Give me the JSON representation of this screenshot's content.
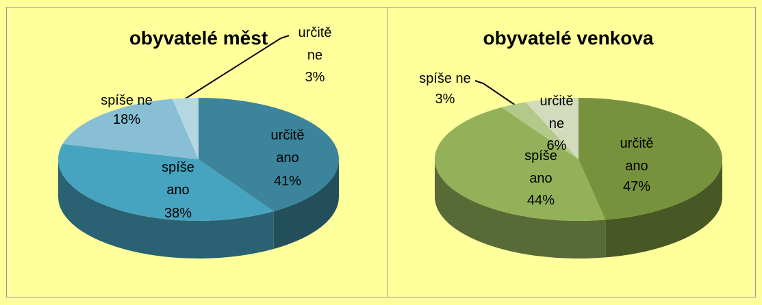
{
  "chart_data": [
    {
      "type": "pie",
      "title": "obyvatelé měst",
      "categories": [
        "určitě ano",
        "spíše ano",
        "spíše ne",
        "určitě ne"
      ],
      "values": [
        41,
        38,
        18,
        3
      ],
      "value_labels": [
        "41%",
        "38%",
        "18%",
        "3%"
      ],
      "colors": [
        "#3b849b",
        "#46a4c0",
        "#88bfd4",
        "#b5d6e3"
      ]
    },
    {
      "type": "pie",
      "title": "obyvatelé venkova",
      "categories": [
        "určitě ano",
        "spíše ano",
        "spíše ne",
        "určitě ne"
      ],
      "values": [
        47,
        44,
        3,
        6
      ],
      "value_labels": [
        "47%",
        "44%",
        "3%",
        "6%"
      ],
      "colors": [
        "#77923c",
        "#92b158",
        "#b3c98b",
        "#d2dcbd"
      ]
    }
  ]
}
